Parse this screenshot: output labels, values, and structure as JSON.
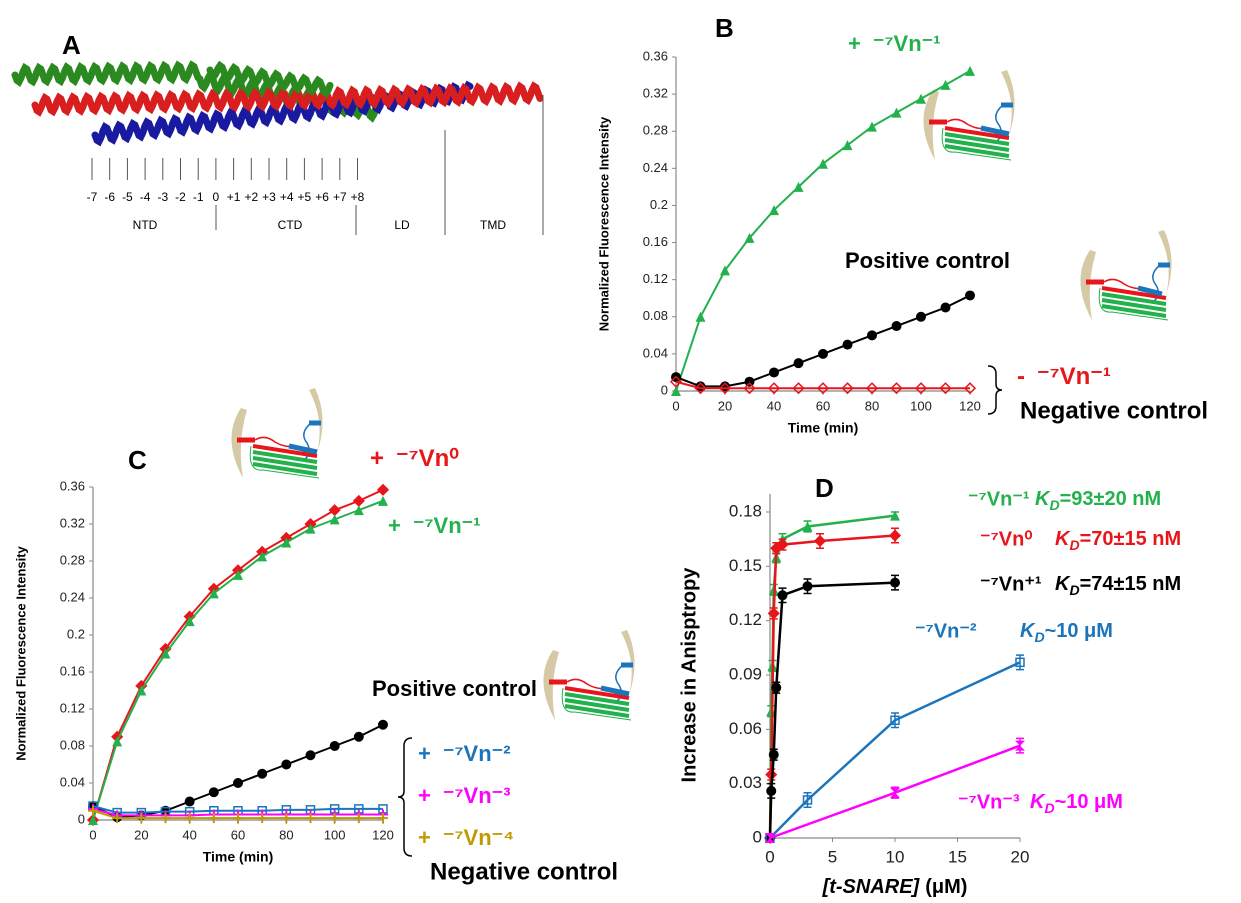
{
  "panel_a": {
    "label": "A",
    "positions": [
      "-7",
      "-6",
      "-5",
      "-4",
      "-3",
      "-2",
      "-1",
      "0",
      "+1",
      "+2",
      "+3",
      "+4",
      "+5",
      "+6",
      "+7",
      "+8"
    ],
    "domains": [
      "NTD",
      "CTD",
      "LD",
      "TMD"
    ]
  },
  "chart_data": [
    {
      "type": "line",
      "panel": "B",
      "xlabel": "Time (min)",
      "ylabel": "Normalized Fluorescence Intensity",
      "x": [
        0,
        10,
        20,
        30,
        40,
        50,
        60,
        70,
        80,
        90,
        100,
        110,
        120
      ],
      "xlim": [
        0,
        120
      ],
      "xticks": [
        0,
        20,
        40,
        60,
        80,
        100,
        120
      ],
      "ylim": [
        0,
        0.36
      ],
      "yticks": [
        0,
        0.04,
        0.08,
        0.12,
        0.16,
        0.2,
        0.24,
        0.28,
        0.32,
        0.36
      ],
      "series": [
        {
          "name": "⁻⁷Vn⁻¹",
          "sign": "+",
          "color": "#22b14c",
          "marker": "triangle",
          "values": [
            0,
            0.08,
            0.13,
            0.165,
            0.195,
            0.22,
            0.245,
            0.265,
            0.285,
            0.3,
            0.315,
            0.33,
            0.345
          ]
        },
        {
          "name": "Positive control",
          "color": "#000000",
          "marker": "circle",
          "values": [
            0.015,
            0.005,
            0.005,
            0.01,
            0.02,
            0.03,
            0.04,
            0.05,
            0.06,
            0.07,
            0.08,
            0.09,
            0.103
          ]
        },
        {
          "name": "⁻⁷Vn⁻¹",
          "sign": "-",
          "color": "#e8161b",
          "marker": "diamond-open",
          "values": [
            0.01,
            0.003,
            0.003,
            0.003,
            0.003,
            0.003,
            0.003,
            0.003,
            0.003,
            0.003,
            0.003,
            0.003,
            0.003
          ]
        }
      ],
      "annotations": [
        "Negative control"
      ]
    },
    {
      "type": "line",
      "panel": "C",
      "xlabel": "Time (min)",
      "ylabel": "Normalized Fluorescence Intensity",
      "x": [
        0,
        10,
        20,
        30,
        40,
        50,
        60,
        70,
        80,
        90,
        100,
        110,
        120
      ],
      "xlim": [
        0,
        120
      ],
      "xticks": [
        0,
        20,
        40,
        60,
        80,
        100,
        120
      ],
      "ylim": [
        0,
        0.36
      ],
      "yticks": [
        0,
        0.04,
        0.08,
        0.12,
        0.16,
        0.2,
        0.24,
        0.28,
        0.32,
        0.36
      ],
      "series": [
        {
          "name": "⁻⁷Vn⁰",
          "sign": "+",
          "color": "#e8161b",
          "marker": "diamond",
          "values": [
            0,
            0.09,
            0.145,
            0.185,
            0.22,
            0.25,
            0.27,
            0.29,
            0.305,
            0.32,
            0.335,
            0.345,
            0.357
          ]
        },
        {
          "name": "⁻⁷Vn⁻¹",
          "sign": "+",
          "color": "#22b14c",
          "marker": "triangle",
          "values": [
            0,
            0.085,
            0.14,
            0.18,
            0.215,
            0.245,
            0.265,
            0.285,
            0.3,
            0.315,
            0.325,
            0.335,
            0.345
          ]
        },
        {
          "name": "Positive control",
          "color": "#000000",
          "marker": "circle",
          "values": [
            0.015,
            0.003,
            0.005,
            0.01,
            0.02,
            0.03,
            0.04,
            0.05,
            0.06,
            0.07,
            0.08,
            0.09,
            0.103
          ]
        },
        {
          "name": "⁻⁷Vn⁻²",
          "sign": "+",
          "color": "#1b75bc",
          "marker": "square-open",
          "values": [
            0.015,
            0.008,
            0.008,
            0.009,
            0.009,
            0.01,
            0.01,
            0.01,
            0.011,
            0.011,
            0.012,
            0.012,
            0.012
          ]
        },
        {
          "name": "⁻⁷Vn⁻³",
          "sign": "+",
          "color": "#ff00ff",
          "marker": "plus",
          "values": [
            0.012,
            0.005,
            0.005,
            0.005,
            0.005,
            0.006,
            0.006,
            0.006,
            0.006,
            0.006,
            0.006,
            0.006,
            0.006
          ]
        },
        {
          "name": "⁻⁷Vn⁻⁴",
          "sign": "+",
          "color": "#c09a00",
          "marker": "plus",
          "values": [
            0.01,
            0.002,
            0.002,
            0.002,
            0.002,
            0.002,
            0.002,
            0.002,
            0.002,
            0.002,
            0.002,
            0.002,
            0.002
          ]
        }
      ],
      "annotations": [
        "Negative control"
      ]
    },
    {
      "type": "scatter",
      "panel": "D",
      "xlabel": "[t-SNARE]",
      "xlabel_unit": "(μM)",
      "ylabel": "Increase in Anisptropy",
      "xlim": [
        0,
        20
      ],
      "xticks": [
        0,
        5,
        10,
        15,
        20
      ],
      "ylim": [
        0,
        0.18
      ],
      "yticks": [
        0,
        0.03,
        0.06,
        0.09,
        0.12,
        0.15,
        0.18
      ],
      "kd_symbol": "K",
      "kd_subscript": "D",
      "series": [
        {
          "name": "⁻⁷Vn⁻¹",
          "kd": "=93±20 nM",
          "color": "#22b14c",
          "marker": "triangle",
          "x": [
            0,
            0.1,
            0.2,
            0.3,
            0.5,
            1,
            3,
            10
          ],
          "values": [
            0,
            0.07,
            0.095,
            0.137,
            0.155,
            0.165,
            0.172,
            0.178
          ],
          "errors": [
            0.002,
            0.003,
            0.003,
            0.003,
            0.003,
            0.003,
            0.003,
            0.002
          ]
        },
        {
          "name": "⁻⁷Vn⁰",
          "kd": "=70±15 nM",
          "color": "#e8161b",
          "marker": "diamond",
          "x": [
            0,
            0.1,
            0.3,
            0.5,
            1,
            4,
            10
          ],
          "values": [
            0,
            0.035,
            0.124,
            0.16,
            0.162,
            0.164,
            0.167
          ],
          "errors": [
            0.002,
            0.003,
            0.003,
            0.003,
            0.003,
            0.004,
            0.004
          ]
        },
        {
          "name": "⁻⁷Vn⁺¹",
          "kd": "=74±15 nM",
          "color": "#000000",
          "marker": "circle",
          "x": [
            0,
            0.1,
            0.3,
            0.5,
            1,
            3,
            10
          ],
          "values": [
            0,
            0.026,
            0.046,
            0.083,
            0.134,
            0.139,
            0.141
          ],
          "errors": [
            0.002,
            0.004,
            0.003,
            0.003,
            0.004,
            0.004,
            0.004
          ]
        },
        {
          "name": "⁻⁷Vn⁻²",
          "kd": "~10 μM",
          "color": "#1b75bc",
          "marker": "square-open",
          "x": [
            0,
            3,
            10,
            20
          ],
          "values": [
            0,
            0.021,
            0.065,
            0.097
          ],
          "errors": [
            0.002,
            0.004,
            0.004,
            0.004
          ]
        },
        {
          "name": "⁻⁷Vn⁻³",
          "kd": "~10 μM",
          "color": "#ff00ff",
          "marker": "hourglass",
          "x": [
            0,
            10,
            20
          ],
          "values": [
            0,
            0.025,
            0.051
          ],
          "errors": [
            0.002,
            0.003,
            0.004
          ]
        }
      ]
    }
  ]
}
